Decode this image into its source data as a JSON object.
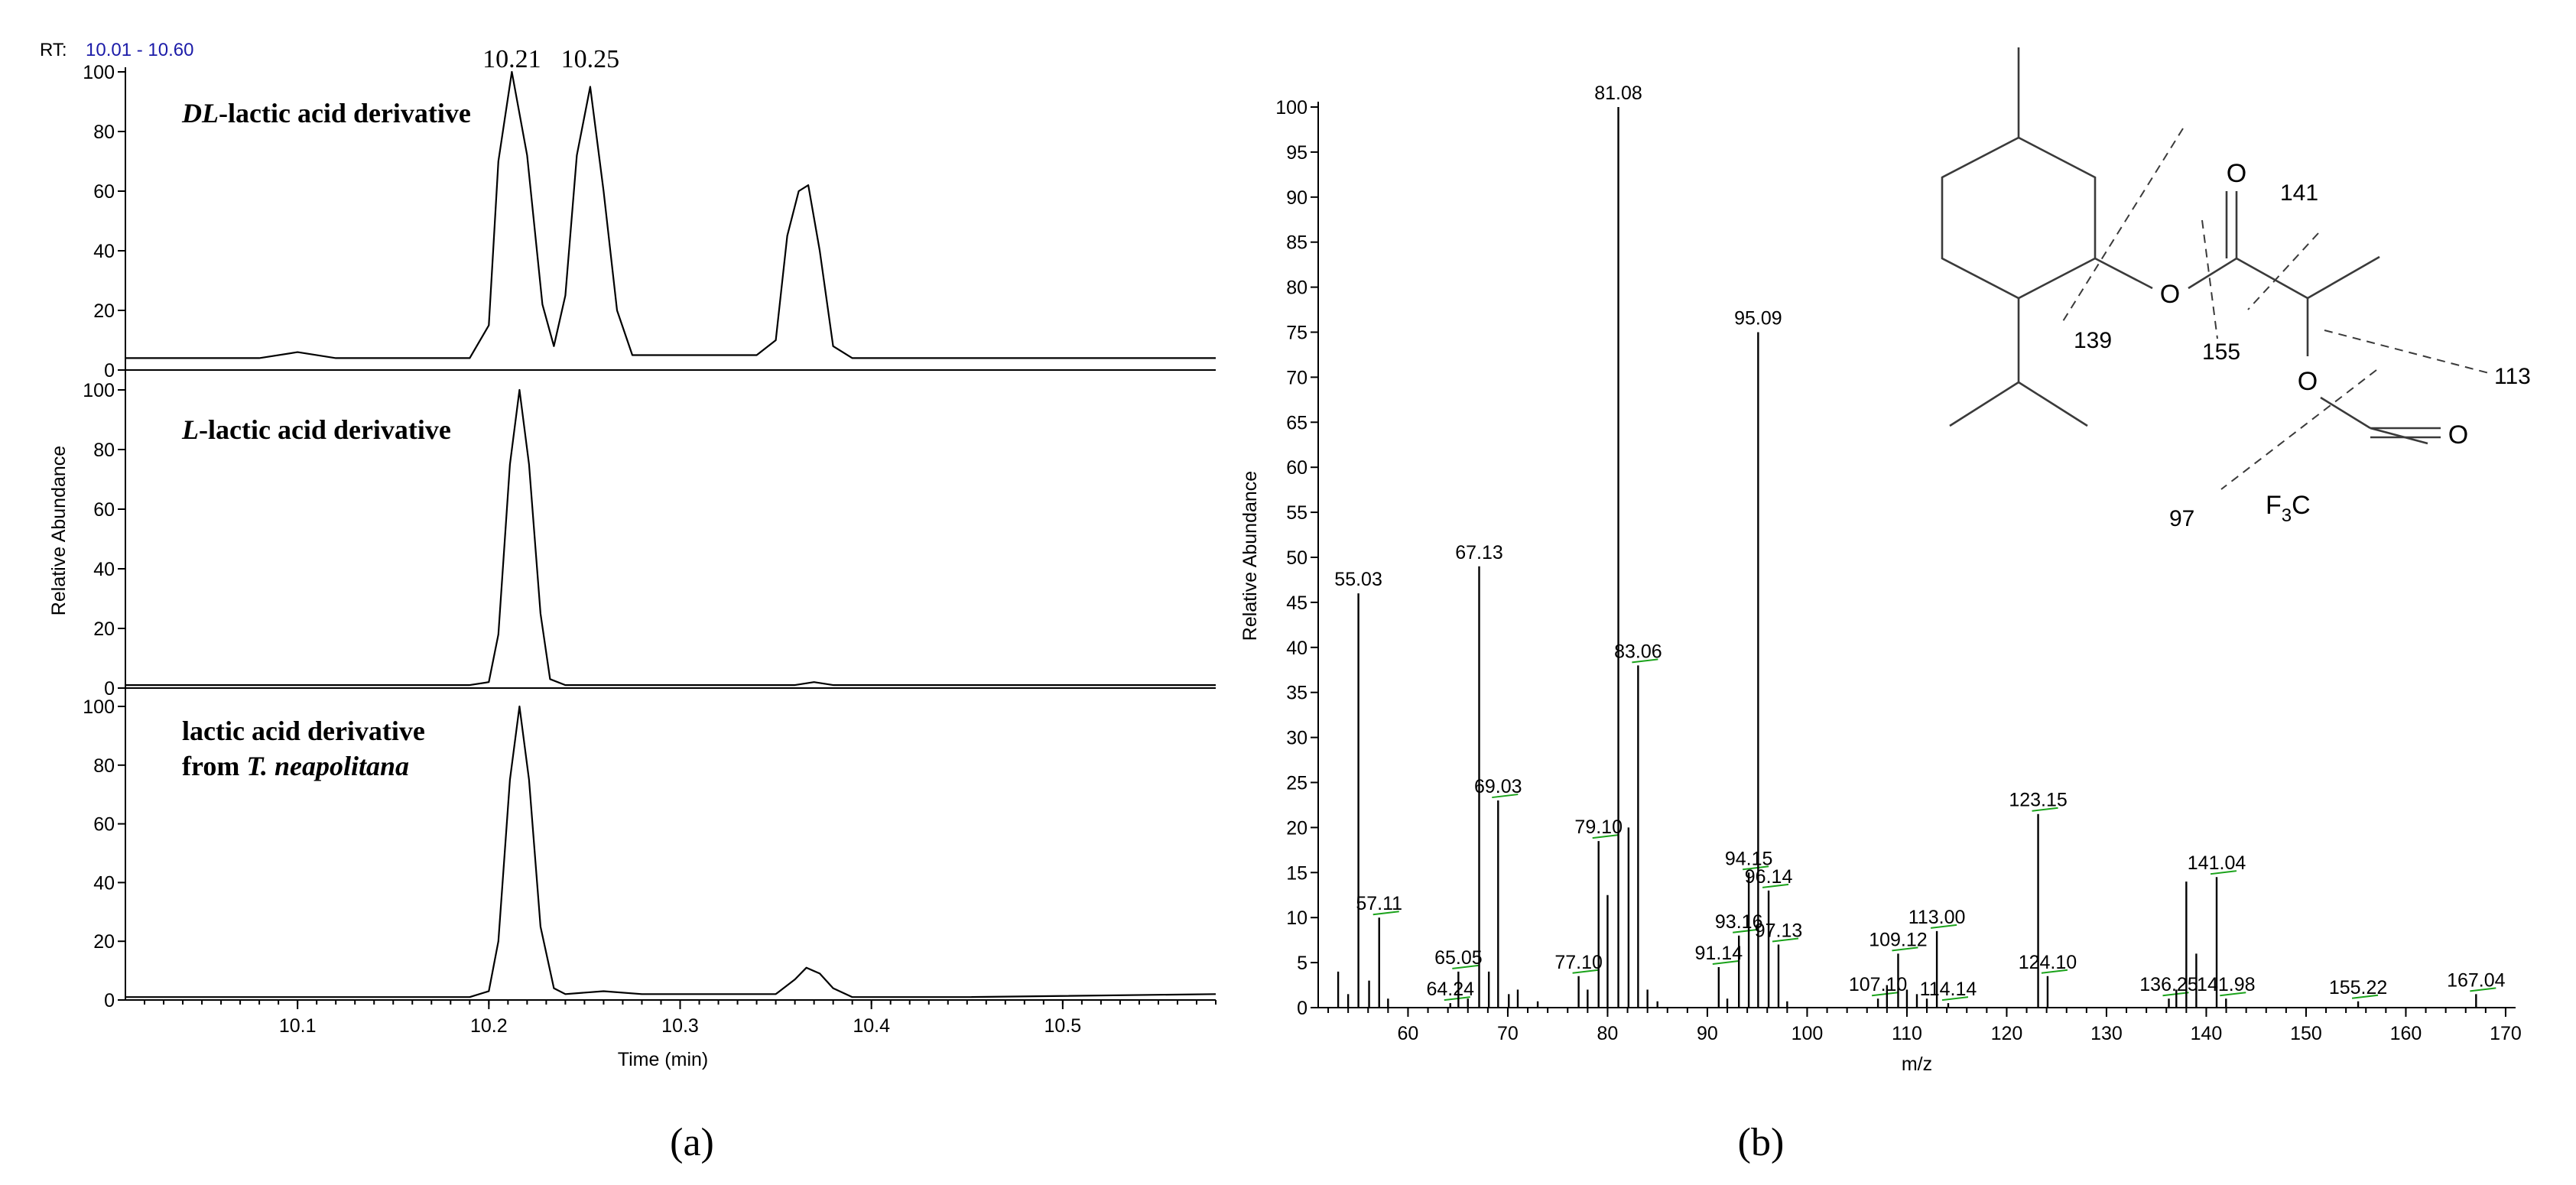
{
  "panel_a": {
    "rt_prefix": "RT:",
    "rt_range": "10.01 - 10.60",
    "xlabel": "Time (min)",
    "ylabel": "Relative Abundance",
    "sub_label": "(a)"
  },
  "panel_b": {
    "xlabel": "m/z",
    "ylabel": "Relative Abundance",
    "sub_label": "(b)"
  },
  "structure": {
    "fragments": [
      "141",
      "139",
      "155",
      "113",
      "97"
    ],
    "atoms": [
      "O",
      "O",
      "O",
      "O"
    ],
    "cf3_main": "F",
    "cf3_sub": "3",
    "cf3_c": "C"
  },
  "chart_data": [
    {
      "type": "line",
      "title": "DL-lactic acid derivative",
      "title_italic": "DL",
      "title_rest": "-lactic acid derivative",
      "xlim": [
        10.01,
        10.58
      ],
      "ylim": [
        0,
        100
      ],
      "x_ticks": [
        10.1,
        10.2,
        10.3,
        10.4,
        10.5
      ],
      "x_tick_labels": [
        "10.1",
        "10.2",
        "10.3",
        "10.4",
        "10.5"
      ],
      "y_ticks": [
        0,
        20,
        40,
        60,
        80,
        100
      ],
      "y_tick_labels": [
        "0",
        "20",
        "40",
        "60",
        "80",
        "100"
      ],
      "x": [
        10.01,
        10.08,
        10.1,
        10.12,
        10.19,
        10.2,
        10.205,
        10.212,
        10.22,
        10.228,
        10.234,
        10.24,
        10.246,
        10.253,
        10.26,
        10.267,
        10.275,
        10.34,
        10.35,
        10.356,
        10.362,
        10.367,
        10.373,
        10.38,
        10.39,
        10.5,
        10.58
      ],
      "y": [
        4,
        4,
        6,
        4,
        4,
        15,
        70,
        100,
        72,
        22,
        8,
        25,
        72,
        95,
        60,
        20,
        5,
        5,
        10,
        45,
        60,
        62,
        40,
        8,
        4,
        4,
        4
      ],
      "annotations": [
        {
          "label": "10.21",
          "x": 10.212
        },
        {
          "label": "10.25",
          "x": 10.253
        }
      ]
    },
    {
      "type": "line",
      "title": "L-lactic acid derivative",
      "title_italic": "L",
      "title_rest": "-lactic acid derivative",
      "xlim": [
        10.01,
        10.58
      ],
      "ylim": [
        0,
        100
      ],
      "y_ticks": [
        0,
        20,
        40,
        60,
        80,
        100
      ],
      "y_tick_labels": [
        "0",
        "20",
        "40",
        "60",
        "80",
        "100"
      ],
      "x": [
        10.01,
        10.19,
        10.2,
        10.205,
        10.211,
        10.216,
        10.221,
        10.227,
        10.232,
        10.24,
        10.36,
        10.37,
        10.38,
        10.58
      ],
      "y": [
        1,
        1,
        2,
        18,
        75,
        100,
        75,
        25,
        3,
        1,
        1,
        2,
        1,
        1
      ]
    },
    {
      "type": "line",
      "title": "lactic acid derivative from T. neapolitana",
      "title_line1": "lactic acid derivative",
      "title_line2_prefix": "from ",
      "title_line2_italic": "T. neapolitana",
      "xlim": [
        10.01,
        10.58
      ],
      "ylim": [
        0,
        100
      ],
      "y_ticks": [
        0,
        20,
        40,
        60,
        80,
        100
      ],
      "y_tick_labels": [
        "0",
        "20",
        "40",
        "60",
        "80",
        "100"
      ],
      "x": [
        10.01,
        10.19,
        10.2,
        10.205,
        10.211,
        10.216,
        10.221,
        10.227,
        10.234,
        10.24,
        10.26,
        10.28,
        10.35,
        10.36,
        10.366,
        10.373,
        10.38,
        10.39,
        10.45,
        10.58
      ],
      "y": [
        1,
        1,
        3,
        20,
        75,
        100,
        75,
        25,
        4,
        2,
        3,
        2,
        2,
        7,
        11,
        9,
        4,
        1,
        1,
        2
      ]
    },
    {
      "type": "bar",
      "title": "",
      "xlabel": "m/z",
      "ylabel": "Relative Abundance",
      "xlim": [
        51,
        171
      ],
      "ylim": [
        0,
        100
      ],
      "x_ticks": [
        60,
        70,
        80,
        90,
        100,
        110,
        120,
        130,
        140,
        150,
        160,
        170
      ],
      "x_tick_labels": [
        "60",
        "70",
        "80",
        "90",
        "100",
        "110",
        "120",
        "130",
        "140",
        "150",
        "160",
        "170"
      ],
      "y_ticks": [
        0,
        5,
        10,
        15,
        20,
        25,
        30,
        35,
        40,
        45,
        50,
        55,
        60,
        65,
        70,
        75,
        80,
        85,
        90,
        95,
        100
      ],
      "y_tick_labels": [
        "0",
        "5",
        "10",
        "15",
        "20",
        "25",
        "30",
        "35",
        "40",
        "45",
        "50",
        "55",
        "60",
        "65",
        "70",
        "75",
        "80",
        "85",
        "90",
        "95",
        "100"
      ],
      "peaks": [
        {
          "mz": 53.0,
          "value": 4
        },
        {
          "mz": 54.0,
          "value": 1.5
        },
        {
          "mz": 55.03,
          "value": 46,
          "label": "55.03"
        },
        {
          "mz": 56.1,
          "value": 3
        },
        {
          "mz": 57.11,
          "value": 10,
          "label": "57.11"
        },
        {
          "mz": 58.0,
          "value": 1
        },
        {
          "mz": 64.24,
          "value": 0.5,
          "label": "64.24"
        },
        {
          "mz": 65.05,
          "value": 4,
          "label": "65.05"
        },
        {
          "mz": 66.0,
          "value": 1
        },
        {
          "mz": 67.13,
          "value": 49,
          "label": "67.13"
        },
        {
          "mz": 68.1,
          "value": 4
        },
        {
          "mz": 69.03,
          "value": 23,
          "label": "69.03"
        },
        {
          "mz": 70.1,
          "value": 1.5
        },
        {
          "mz": 71.0,
          "value": 2
        },
        {
          "mz": 73.0,
          "value": 0.7
        },
        {
          "mz": 77.1,
          "value": 3.5,
          "label": "77.10"
        },
        {
          "mz": 78.0,
          "value": 2
        },
        {
          "mz": 79.1,
          "value": 18.5,
          "label": "79.10"
        },
        {
          "mz": 80.0,
          "value": 12.5
        },
        {
          "mz": 81.08,
          "value": 100,
          "label": "81.08"
        },
        {
          "mz": 82.1,
          "value": 20
        },
        {
          "mz": 83.06,
          "value": 38,
          "label": "83.06"
        },
        {
          "mz": 84.0,
          "value": 2
        },
        {
          "mz": 85.0,
          "value": 0.7
        },
        {
          "mz": 91.14,
          "value": 4.5,
          "label": "91.14"
        },
        {
          "mz": 92.0,
          "value": 1
        },
        {
          "mz": 93.16,
          "value": 8,
          "label": "93.16"
        },
        {
          "mz": 94.15,
          "value": 15,
          "label": "94.15"
        },
        {
          "mz": 95.09,
          "value": 75,
          "label": "95.09"
        },
        {
          "mz": 96.14,
          "value": 13,
          "label": "96.14"
        },
        {
          "mz": 97.13,
          "value": 7,
          "label": "97.13"
        },
        {
          "mz": 98.0,
          "value": 0.7
        },
        {
          "mz": 107.1,
          "value": 1,
          "label": "107.10"
        },
        {
          "mz": 108.0,
          "value": 2.5
        },
        {
          "mz": 109.12,
          "value": 6,
          "label": "109.12"
        },
        {
          "mz": 110.0,
          "value": 2
        },
        {
          "mz": 111.0,
          "value": 1.5
        },
        {
          "mz": 112.0,
          "value": 1
        },
        {
          "mz": 113.0,
          "value": 8.5,
          "label": "113.00"
        },
        {
          "mz": 114.14,
          "value": 0.5,
          "label": "114.14"
        },
        {
          "mz": 123.15,
          "value": 21.5,
          "label": "123.15"
        },
        {
          "mz": 124.1,
          "value": 3.5,
          "label": "124.10"
        },
        {
          "mz": 136.25,
          "value": 1,
          "label": "136.25"
        },
        {
          "mz": 137.0,
          "value": 2
        },
        {
          "mz": 138.0,
          "value": 14
        },
        {
          "mz": 139.0,
          "value": 6
        },
        {
          "mz": 141.04,
          "value": 14.5,
          "label": "141.04"
        },
        {
          "mz": 141.98,
          "value": 1,
          "label": "141.98"
        },
        {
          "mz": 155.22,
          "value": 0.7,
          "label": "155.22"
        },
        {
          "mz": 167.04,
          "value": 1.5,
          "label": "167.04"
        }
      ]
    }
  ]
}
